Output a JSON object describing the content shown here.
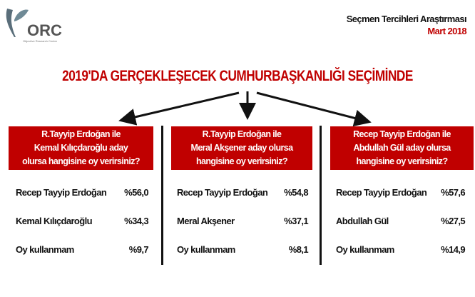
{
  "logo": {
    "text": "ORC",
    "subtitle": "Objective Research Center"
  },
  "header": {
    "survey": "Seçmen Tercihleri Araştırması",
    "date": "Mart 2018"
  },
  "title": "2019'DA GERÇEKLEŞECEK CUMHURBAŞKANLIĞI SEÇİMİNDE",
  "colors": {
    "accent": "#c00000",
    "text": "#111111"
  },
  "panels": [
    {
      "question": [
        "R.Tayyip Erdoğan ile",
        "Kemal Kılıçdaroğlu aday",
        "olursa hangisine oy verirsiniz?"
      ],
      "rows": [
        {
          "label": "Recep Tayyip Erdoğan",
          "value": "%56,0"
        },
        {
          "label": "Kemal Kılıçdaroğlu",
          "value": "%34,3"
        },
        {
          "label": "Oy kullanmam",
          "value": "%9,7"
        }
      ]
    },
    {
      "question": [
        "R.Tayyip Erdoğan ile",
        "Meral Akşener aday olursa",
        "hangisine oy verirsiniz?"
      ],
      "rows": [
        {
          "label": "Recep Tayyip Erdoğan",
          "value": "%54,8"
        },
        {
          "label": "Meral Akşener",
          "value": "%37,1"
        },
        {
          "label": "Oy kullanmam",
          "value": "%8,1"
        }
      ]
    },
    {
      "question": [
        "Recep Tayyip Erdoğan ile",
        "Abdullah Gül aday olursa",
        "hangisine oy verirsiniz?"
      ],
      "rows": [
        {
          "label": "Recep Tayyip Erdoğan",
          "value": "%57,6"
        },
        {
          "label": "Abdullah Gül",
          "value": "%27,5"
        },
        {
          "label": "Oy kullanmam",
          "value": "%14,9"
        }
      ]
    }
  ]
}
